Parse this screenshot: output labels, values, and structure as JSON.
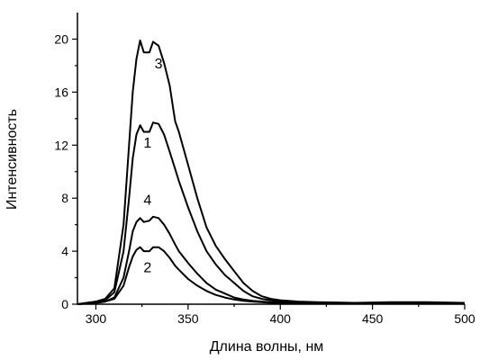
{
  "chart_data": {
    "type": "line",
    "xlabel": "Длина волны, нм",
    "ylabel": "Интенсивность",
    "xlim": [
      290,
      500
    ],
    "ylim": [
      0,
      22
    ],
    "xticks": [
      300,
      350,
      400,
      450,
      500
    ],
    "yticks": [
      0,
      4,
      8,
      12,
      16,
      20
    ],
    "grid": false,
    "series": [
      {
        "name": "3",
        "label_at": [
          334,
          17.8
        ],
        "x": [
          290,
          300,
          305,
          310,
          315,
          318,
          320,
          322,
          324,
          326,
          329,
          331,
          334,
          337,
          340,
          343,
          345,
          350,
          355,
          360,
          365,
          370,
          375,
          380,
          385,
          390,
          395,
          400,
          410,
          420,
          440,
          460,
          480,
          500
        ],
        "y": [
          0,
          0.2,
          0.4,
          1.2,
          6,
          12,
          16,
          18.5,
          19.9,
          19.0,
          19.0,
          19.8,
          19.5,
          18.2,
          16.5,
          13.8,
          13.0,
          10.5,
          8.0,
          5.8,
          4.4,
          3.4,
          2.5,
          1.6,
          1.0,
          0.6,
          0.4,
          0.3,
          0.2,
          0.15,
          0.1,
          0.15,
          0.15,
          0.1
        ]
      },
      {
        "name": "1",
        "label_at": [
          328,
          11.8
        ],
        "x": [
          290,
          300,
          305,
          310,
          315,
          318,
          320,
          322,
          324,
          326,
          329,
          331,
          334,
          337,
          340,
          343,
          345,
          350,
          355,
          360,
          365,
          370,
          375,
          380,
          385,
          390,
          395,
          400,
          410,
          420,
          440,
          460,
          480,
          500
        ],
        "y": [
          0,
          0.2,
          0.3,
          0.9,
          4,
          8,
          11,
          12.8,
          13.5,
          13.0,
          13.0,
          13.7,
          13.6,
          12.8,
          11.5,
          10.2,
          9.3,
          7.3,
          5.5,
          4.0,
          3.0,
          2.2,
          1.6,
          1.0,
          0.6,
          0.4,
          0.3,
          0.2,
          0.15,
          0.1,
          0.1,
          0.1,
          0.1,
          0.1
        ]
      },
      {
        "name": "4",
        "label_at": [
          328,
          7.5
        ],
        "x": [
          290,
          300,
          305,
          310,
          315,
          318,
          320,
          322,
          324,
          326,
          329,
          331,
          334,
          337,
          340,
          343,
          345,
          350,
          355,
          360,
          365,
          370,
          375,
          380,
          385,
          390,
          395,
          400,
          410,
          420,
          440,
          460,
          480,
          500
        ],
        "y": [
          0,
          0.1,
          0.2,
          0.5,
          2.0,
          4.0,
          5.5,
          6.2,
          6.5,
          6.2,
          6.3,
          6.6,
          6.5,
          6.0,
          5.3,
          4.5,
          4.0,
          3.1,
          2.3,
          1.6,
          1.1,
          0.8,
          0.5,
          0.35,
          0.25,
          0.2,
          0.15,
          0.1,
          0.1,
          0.1,
          0.1,
          0.1,
          0.1,
          0.1
        ]
      },
      {
        "name": "2",
        "label_at": [
          328,
          2.4
        ],
        "x": [
          290,
          300,
          305,
          310,
          315,
          318,
          320,
          322,
          324,
          326,
          329,
          331,
          334,
          337,
          340,
          343,
          345,
          350,
          355,
          360,
          365,
          370,
          375,
          380,
          385,
          390,
          395,
          400,
          410,
          420,
          440,
          460,
          480,
          500
        ],
        "y": [
          0,
          0.1,
          0.2,
          0.4,
          1.4,
          2.8,
          3.6,
          4.1,
          4.3,
          4.0,
          4.0,
          4.3,
          4.3,
          4.0,
          3.5,
          2.9,
          2.6,
          1.9,
          1.4,
          1.0,
          0.7,
          0.5,
          0.35,
          0.25,
          0.2,
          0.15,
          0.1,
          0.1,
          0.1,
          0.1,
          0.1,
          0.1,
          0.1,
          0.1
        ]
      }
    ]
  }
}
